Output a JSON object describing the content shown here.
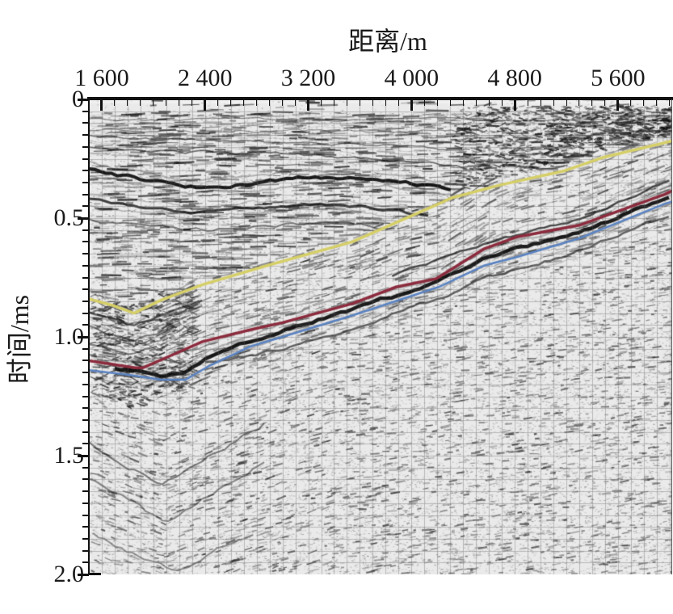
{
  "chart_data": {
    "type": "heatmap",
    "subtype": "seismic-reflection-section-with-interpreted-horizons",
    "xlabel": "距离/m",
    "ylabel": "时间/ms",
    "xlim": [
      1500,
      6020
    ],
    "ylim": [
      0,
      2.0
    ],
    "x_ticks": [
      {
        "label": "1 600",
        "value": 1600
      },
      {
        "label": "2 400",
        "value": 2400
      },
      {
        "label": "3 200",
        "value": 3200
      },
      {
        "label": "4 000",
        "value": 4000
      },
      {
        "label": "4 800",
        "value": 4800
      },
      {
        "label": "5 600",
        "value": 5600
      }
    ],
    "x_minor_step": 100,
    "y_ticks": [
      {
        "label": "0",
        "value": 0
      },
      {
        "label": "0.5",
        "value": 0.5
      },
      {
        "label": "1.0",
        "value": 1.0
      },
      {
        "label": "1.5",
        "value": 1.5
      },
      {
        "label": "2.0",
        "value": 2.0
      }
    ],
    "y_minor_step": 0.05,
    "grid": "light gray minor grid over grayscale seismic texture",
    "series": [
      {
        "name": "horizon-yellow-shallow",
        "color": "#d6cf68",
        "width": 3.5,
        "points": [
          [
            1500,
            0.84
          ],
          [
            1700,
            0.87
          ],
          [
            1850,
            0.9
          ],
          [
            2060,
            0.845
          ],
          [
            2380,
            0.78
          ],
          [
            2880,
            0.7
          ],
          [
            3540,
            0.6
          ],
          [
            4210,
            0.44
          ],
          [
            4310,
            0.415
          ],
          [
            4690,
            0.36
          ],
          [
            5190,
            0.3
          ],
          [
            5480,
            0.245
          ],
          [
            6020,
            0.175
          ]
        ]
      },
      {
        "name": "horizon-red-middle",
        "color": "#8c2b3d",
        "width": 3.5,
        "points": [
          [
            1500,
            1.1
          ],
          [
            1860,
            1.13
          ],
          [
            1920,
            1.13
          ],
          [
            2130,
            1.08
          ],
          [
            2380,
            1.02
          ],
          [
            2750,
            0.97
          ],
          [
            3000,
            0.94
          ],
          [
            3540,
            0.86
          ],
          [
            3880,
            0.79
          ],
          [
            4190,
            0.755
          ],
          [
            4310,
            0.715
          ],
          [
            4560,
            0.63
          ],
          [
            4810,
            0.58
          ],
          [
            5300,
            0.53
          ],
          [
            5960,
            0.4
          ],
          [
            6020,
            0.385
          ]
        ]
      },
      {
        "name": "horizon-blue-deep",
        "color": "#5a83c3",
        "width": 2.5,
        "points": [
          [
            1500,
            1.14
          ],
          [
            1810,
            1.16
          ],
          [
            2060,
            1.18
          ],
          [
            2250,
            1.18
          ],
          [
            2440,
            1.12
          ],
          [
            2750,
            1.04
          ],
          [
            3000,
            1.0
          ],
          [
            3540,
            0.91
          ],
          [
            4210,
            0.79
          ],
          [
            4560,
            0.7
          ],
          [
            4810,
            0.665
          ],
          [
            5300,
            0.585
          ],
          [
            5960,
            0.44
          ],
          [
            6020,
            0.43
          ]
        ]
      }
    ],
    "strong_reflectors": [
      {
        "points": [
          [
            1500,
            0.085
          ],
          [
            6020,
            0.085
          ]
        ],
        "width": 1.3,
        "dark": 0.45,
        "wob": 1.2
      },
      {
        "points": [
          [
            1500,
            0.13
          ],
          [
            4500,
            0.135
          ]
        ],
        "width": 1.2,
        "dark": 0.4,
        "wob": 1.5
      },
      {
        "points": [
          [
            1500,
            0.155
          ],
          [
            2600,
            0.175
          ],
          [
            3600,
            0.19
          ],
          [
            4400,
            0.21
          ]
        ],
        "width": 1.5,
        "dark": 0.5,
        "wob": 1.5
      },
      {
        "points": [
          [
            1500,
            0.2
          ],
          [
            2200,
            0.225
          ],
          [
            3000,
            0.225
          ],
          [
            3900,
            0.26
          ],
          [
            4450,
            0.285
          ]
        ],
        "width": 1.8,
        "dark": 0.55,
        "wob": 1.6
      },
      {
        "points": [
          [
            1500,
            0.295
          ],
          [
            1900,
            0.335
          ],
          [
            2300,
            0.37
          ],
          [
            2750,
            0.355
          ],
          [
            3200,
            0.325
          ],
          [
            3800,
            0.34
          ],
          [
            4320,
            0.375
          ]
        ],
        "width": 4,
        "dark": 0.9,
        "wob": 1.8
      },
      {
        "points": [
          [
            1500,
            0.42
          ],
          [
            1950,
            0.455
          ],
          [
            2300,
            0.48
          ],
          [
            2750,
            0.46
          ],
          [
            3250,
            0.44
          ],
          [
            3750,
            0.465
          ],
          [
            4150,
            0.49
          ]
        ],
        "width": 3,
        "dark": 0.75,
        "wob": 1.8
      },
      {
        "points": [
          [
            1500,
            0.5
          ],
          [
            2000,
            0.535
          ],
          [
            2400,
            0.55
          ],
          [
            2900,
            0.53
          ],
          [
            3400,
            0.52
          ],
          [
            3900,
            0.55
          ]
        ],
        "width": 2,
        "dark": 0.5,
        "wob": 2
      },
      {
        "points": [
          [
            1500,
            0.9
          ],
          [
            1850,
            0.95
          ],
          [
            2100,
            0.9
          ],
          [
            2400,
            0.84
          ]
        ],
        "width": 2.5,
        "dark": 0.6,
        "wob": 1.5
      },
      {
        "points": [
          [
            1500,
            0.96
          ],
          [
            1850,
            1.02
          ],
          [
            2150,
            0.96
          ]
        ],
        "width": 2,
        "dark": 0.5,
        "wob": 1.5
      },
      {
        "points": [
          [
            1500,
            1.03
          ],
          [
            1800,
            1.07
          ],
          [
            2050,
            1.03
          ]
        ],
        "width": 2,
        "dark": 0.5,
        "wob": 1.5
      },
      {
        "points": [
          [
            3850,
            0.74
          ],
          [
            4560,
            0.61
          ],
          [
            5300,
            0.5
          ],
          [
            6020,
            0.335
          ]
        ],
        "width": 2.5,
        "dark": 0.7,
        "wob": 1.5
      },
      {
        "points": [
          [
            1700,
            1.13
          ],
          [
            2050,
            1.16
          ],
          [
            2250,
            1.15
          ],
          [
            2450,
            1.08
          ],
          [
            3000,
            0.97
          ],
          [
            3540,
            0.885
          ],
          [
            4210,
            0.77
          ],
          [
            4560,
            0.665
          ],
          [
            5300,
            0.56
          ],
          [
            6020,
            0.405
          ]
        ],
        "width": 4.5,
        "dark": 0.9,
        "wob": 1.5
      },
      {
        "points": [
          [
            2400,
            1.11
          ],
          [
            3000,
            1.05
          ],
          [
            3540,
            0.96
          ],
          [
            4210,
            0.84
          ],
          [
            4560,
            0.75
          ],
          [
            5300,
            0.64
          ],
          [
            6020,
            0.485
          ]
        ],
        "width": 2.5,
        "dark": 0.6,
        "wob": 1.8
      },
      {
        "points": [
          [
            1500,
            1.44
          ],
          [
            2060,
            1.62
          ],
          [
            2900,
            1.35
          ]
        ],
        "width": 2,
        "dark": 0.5,
        "wob": 2.5
      },
      {
        "points": [
          [
            1500,
            1.6
          ],
          [
            2100,
            1.79
          ],
          [
            2900,
            1.51
          ]
        ],
        "width": 2,
        "dark": 0.45,
        "wob": 2.5
      },
      {
        "points": [
          [
            1530,
            1.83
          ],
          [
            2150,
            1.99
          ],
          [
            2700,
            1.84
          ]
        ],
        "width": 2,
        "dark": 0.4,
        "wob": 2.5
      }
    ]
  },
  "colors": {
    "axis": "#111111",
    "text": "#1a1a1a",
    "section_background": "#eaeaea",
    "grid": "#a0a0a0",
    "horizon_yellow": "#d6cf68",
    "horizon_red": "#8c2b3d",
    "horizon_blue": "#5a83c3"
  }
}
